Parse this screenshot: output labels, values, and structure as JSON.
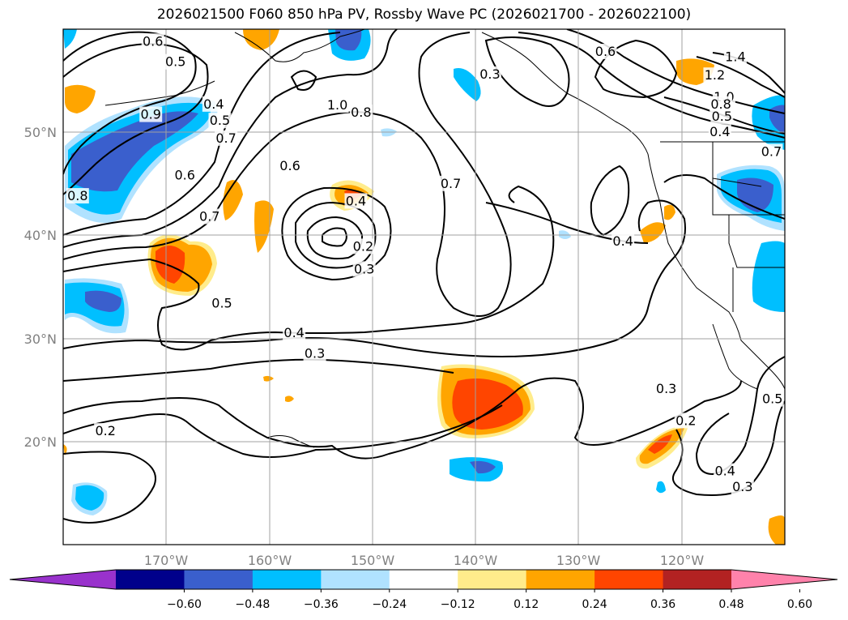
{
  "title": "2026021500 F060 850 hPa PV, Rossby Wave PC (2026021700 - 2026022100)",
  "map": {
    "lon_range": [
      -180,
      -110
    ],
    "lat_range": [
      10,
      60
    ],
    "lat_ticks": [
      "50°N",
      "40°N",
      "30°N",
      "20°N"
    ],
    "lon_ticks": [
      "170°W",
      "160°W",
      "150°W",
      "140°W",
      "130°W",
      "120°W"
    ]
  },
  "contour_labels": [
    {
      "text": "0.6",
      "lon": -171.3,
      "lat": 58.8
    },
    {
      "text": "0.5",
      "lon": -169.1,
      "lat": 56.8
    },
    {
      "text": "0.4",
      "lon": -165.4,
      "lat": 52.7
    },
    {
      "text": "0.5",
      "lon": -164.8,
      "lat": 51.1
    },
    {
      "text": "0.7",
      "lon": -164.2,
      "lat": 49.4
    },
    {
      "text": "0.6",
      "lon": -168.2,
      "lat": 45.8
    },
    {
      "text": "0.8",
      "lon": -178.6,
      "lat": 43.8
    },
    {
      "text": "0.9",
      "lon": -171.5,
      "lat": 51.7
    },
    {
      "text": "1.0",
      "lon": -153.4,
      "lat": 52.6
    },
    {
      "text": "0.8",
      "lon": -151.1,
      "lat": 51.9
    },
    {
      "text": "0.6",
      "lon": -158.0,
      "lat": 46.7
    },
    {
      "text": "0.7",
      "lon": -165.8,
      "lat": 41.8
    },
    {
      "text": "0.4",
      "lon": -151.6,
      "lat": 43.3
    },
    {
      "text": "0.2",
      "lon": -150.9,
      "lat": 38.9
    },
    {
      "text": "0.3",
      "lon": -150.8,
      "lat": 36.7
    },
    {
      "text": "0.7",
      "lon": -142.4,
      "lat": 45.0
    },
    {
      "text": "0.5",
      "lon": -164.6,
      "lat": 33.4
    },
    {
      "text": "0.4",
      "lon": -157.6,
      "lat": 30.5
    },
    {
      "text": "0.3",
      "lon": -155.6,
      "lat": 28.5
    },
    {
      "text": "0.3",
      "lon": -138.6,
      "lat": 55.6
    },
    {
      "text": "0.6",
      "lon": -127.4,
      "lat": 57.8
    },
    {
      "text": "0.4",
      "lon": -125.7,
      "lat": 39.4
    },
    {
      "text": "0.3",
      "lon": -121.5,
      "lat": 25.1
    },
    {
      "text": "0.2",
      "lon": -119.6,
      "lat": 22.0
    },
    {
      "text": "0.2",
      "lon": -175.9,
      "lat": 21.0
    },
    {
      "text": "1.2",
      "lon": -116.8,
      "lat": 55.5
    },
    {
      "text": "1.4",
      "lon": -114.8,
      "lat": 57.3
    },
    {
      "text": "1.0",
      "lon": -115.9,
      "lat": 53.4
    },
    {
      "text": "0.8",
      "lon": -116.2,
      "lat": 52.7
    },
    {
      "text": "0.5",
      "lon": -116.1,
      "lat": 51.5
    },
    {
      "text": "0.4",
      "lon": -116.3,
      "lat": 50.0
    },
    {
      "text": "0.7",
      "lon": -111.3,
      "lat": 48.1
    },
    {
      "text": "0.5",
      "lon": -111.2,
      "lat": 24.1
    },
    {
      "text": "0.4",
      "lon": -115.8,
      "lat": 17.1
    },
    {
      "text": "0.3",
      "lon": -114.1,
      "lat": 15.6
    }
  ],
  "colorbar": {
    "levels": [
      -0.6,
      -0.48,
      -0.36,
      -0.24,
      -0.12,
      0.12,
      0.24,
      0.36,
      0.48,
      0.6
    ],
    "tick_labels": [
      "−0.60",
      "−0.48",
      "−0.36",
      "−0.24",
      "−0.12",
      "0.12",
      "0.24",
      "0.36",
      "0.48",
      "0.60"
    ],
    "colors": [
      "#9932cc",
      "#00008b",
      "#3a5fcd",
      "#00bfff",
      "#b0e2ff",
      "#ffffff",
      "#ffec8b",
      "#ffa500",
      "#ff4500",
      "#b22222",
      "#ff82ab"
    ]
  }
}
